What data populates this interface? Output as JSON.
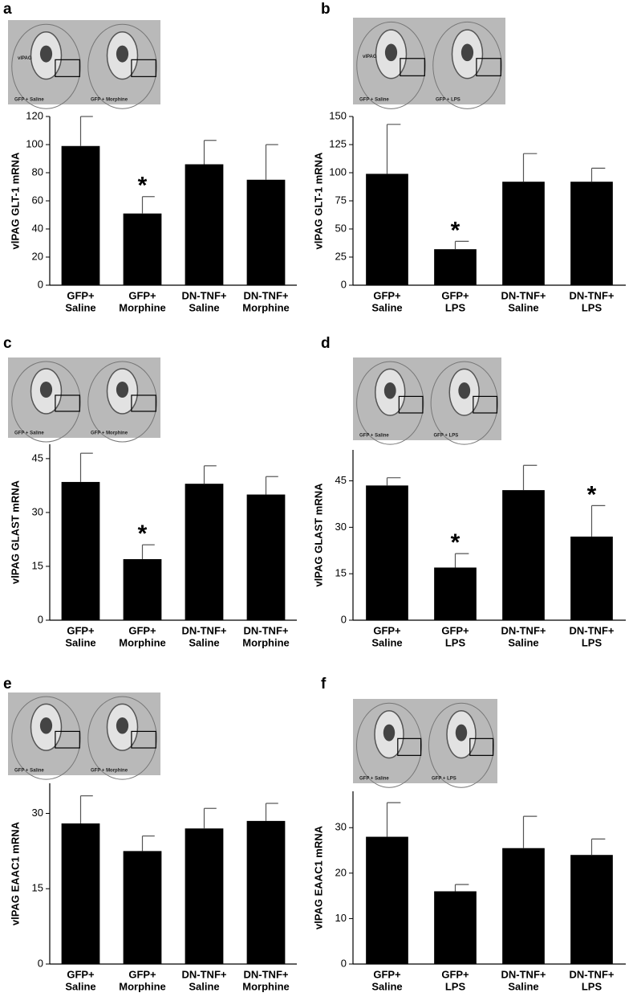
{
  "chart_data": [
    {
      "type": "bar",
      "panel": "a",
      "region_label": "vlPAG",
      "image_labels": [
        "GFP + Saline",
        "GFP + Morphine"
      ],
      "y_label": "vlPAG GLT-1 mRNA",
      "categories": [
        [
          "GFP+",
          "Saline"
        ],
        [
          "GFP+",
          "Morphine"
        ],
        [
          "DN-TNF+",
          "Saline"
        ],
        [
          "DN-TNF+",
          "Morphine"
        ]
      ],
      "values": [
        99,
        51,
        86,
        75
      ],
      "errors": [
        21,
        12,
        17,
        25
      ],
      "color": "#000000",
      "ylim": [
        0,
        120
      ],
      "yticks": [
        0,
        20,
        40,
        60,
        80,
        100,
        120
      ],
      "annotations": [
        {
          "text": "*",
          "category": 1
        }
      ]
    },
    {
      "type": "bar",
      "panel": "b",
      "region_label": "vlPAG",
      "image_labels": [
        "GFP + Saline",
        "GFP + LPS"
      ],
      "y_label": "vlPAG GLT-1 mRNA",
      "categories": [
        [
          "GFP+",
          "Saline"
        ],
        [
          "GFP+",
          "LPS"
        ],
        [
          "DN-TNF+",
          "Saline"
        ],
        [
          "DN-TNF+",
          "LPS"
        ]
      ],
      "values": [
        99,
        32,
        92,
        92
      ],
      "errors": [
        44,
        7,
        25,
        12
      ],
      "color": "#000000",
      "ylim": [
        0,
        150
      ],
      "yticks": [
        0,
        25,
        50,
        75,
        100,
        125,
        150
      ],
      "annotations": [
        {
          "text": "*",
          "category": 1
        }
      ]
    },
    {
      "type": "bar",
      "panel": "c",
      "image_labels": [
        "GFP + Saline",
        "GFP + Morphine"
      ],
      "y_label": "vlPAG GLAST mRNA",
      "categories": [
        [
          "GFP+",
          "Saline"
        ],
        [
          "GFP+",
          "Morphine"
        ],
        [
          "DN-TNF+",
          "Saline"
        ],
        [
          "DN-TNF+",
          "Morphine"
        ]
      ],
      "values": [
        38.5,
        17,
        38,
        35
      ],
      "errors": [
        8,
        4,
        5,
        5
      ],
      "color": "#000000",
      "ylim": [
        0,
        49
      ],
      "yticks": [
        0,
        15,
        30,
        45
      ],
      "annotations": [
        {
          "text": "*",
          "category": 1
        }
      ]
    },
    {
      "type": "bar",
      "panel": "d",
      "image_labels": [
        "GFP + Saline",
        "GFP + LPS"
      ],
      "y_label": "vlPAG GLAST mRNA",
      "categories": [
        [
          "GFP+",
          "Saline"
        ],
        [
          "GFP+",
          "LPS"
        ],
        [
          "DN-TNF+",
          "Saline"
        ],
        [
          "DN-TNF+",
          "LPS"
        ]
      ],
      "values": [
        43.5,
        17,
        42,
        27
      ],
      "errors": [
        2.5,
        4.5,
        8,
        10
      ],
      "color": "#000000",
      "ylim": [
        0,
        55
      ],
      "yticks": [
        0,
        15,
        30,
        45
      ],
      "annotations": [
        {
          "text": "*",
          "category": 1
        },
        {
          "text": "*",
          "category": 3
        }
      ]
    },
    {
      "type": "bar",
      "panel": "e",
      "image_labels": [
        "GFP + Saline",
        "GFP + Morphine"
      ],
      "y_label": "vlPAG EAAC1 mRNA",
      "categories": [
        [
          "GFP+",
          "Saline"
        ],
        [
          "GFP+",
          "Morphine"
        ],
        [
          "DN-TNF+",
          "Saline"
        ],
        [
          "DN-TNF+",
          "Morphine"
        ]
      ],
      "values": [
        28,
        22.5,
        27,
        28.5
      ],
      "errors": [
        5.5,
        3,
        4,
        3.5
      ],
      "color": "#000000",
      "ylim": [
        0,
        36
      ],
      "yticks": [
        0,
        15,
        30
      ]
    },
    {
      "type": "bar",
      "panel": "f",
      "image_labels": [
        "GFP + Saline",
        "GFP + LPS"
      ],
      "y_label": "vlPAG EAAC1 mRNA",
      "categories": [
        [
          "GFP+",
          "Saline"
        ],
        [
          "GFP+",
          "LPS"
        ],
        [
          "DN-TNF+",
          "Saline"
        ],
        [
          "DN-TNF+",
          "LPS"
        ]
      ],
      "values": [
        28,
        16,
        25.5,
        24
      ],
      "errors": [
        7.5,
        1.5,
        7,
        3.5
      ],
      "color": "#000000",
      "ylim": [
        0,
        38
      ],
      "yticks": [
        0,
        10,
        20,
        30
      ]
    }
  ]
}
